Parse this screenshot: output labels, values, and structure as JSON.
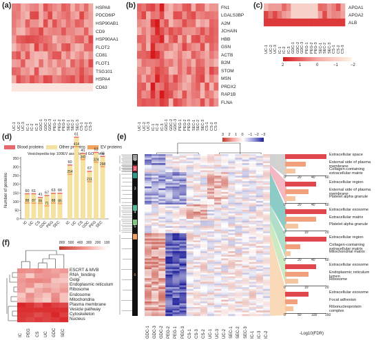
{
  "panels": {
    "a": "(a)",
    "b": "(b)",
    "c": "(c)",
    "d": "(d)",
    "e": "(e)",
    "f": "(f)"
  },
  "sample_labels": [
    "UC-1",
    "UC-2",
    "UC-3",
    "IC-1",
    "IC-2",
    "IC-3",
    "GDC-1",
    "GDC-2",
    "GDC-3",
    "PEG-1",
    "PEG-2",
    "PEG-3",
    "SEC-1",
    "SEC-2",
    "SEC-3",
    "CS-1",
    "CS-2",
    "CS-3"
  ],
  "panel_a": {
    "genes": [
      "HSPA8",
      "PDCD6IP",
      "HSP90AB1",
      "CD9",
      "HSP90AA1",
      "FLOT2",
      "CD81",
      "FLOT1",
      "TSG101",
      "HSPA4",
      "CD63"
    ]
  },
  "panel_b": {
    "genes": [
      "FN1",
      "LGALS3BP",
      "A2M",
      "JCHAIN",
      "HBB",
      "GSN",
      "ACTB",
      "B2M",
      "STOM",
      "MSN",
      "PRDX2",
      "RAP1B",
      "FLNA"
    ]
  },
  "panel_c": {
    "genes": [
      "APOA1",
      "APOA2",
      "ALB"
    ]
  },
  "colorscale": {
    "ticks": [
      "2",
      "1",
      "0",
      "−1",
      "−2"
    ],
    "high": "#d7191c",
    "mid": "#f6c6c0",
    "low": "#fdf4e6"
  },
  "panel_d": {
    "legend": [
      "Blood proteins",
      "Other proteins",
      "EV proteins"
    ],
    "colors": {
      "blood": "#e8676b",
      "other": "#f5e2a0",
      "ev": "#f4a35c"
    },
    "ylabel": "Number of proteins",
    "yticks": [
      "0",
      "50",
      "100",
      "150",
      "200",
      "250",
      "300",
      "350"
    ],
    "group1_title": "Vesiclepedia top 100",
    "group2_title": "EV associated GO terms",
    "categories": [
      "IC",
      "UC",
      "CS",
      "GDC",
      "PEG",
      "SEC"
    ],
    "g1_top": [
      "60",
      "61",
      "41",
      "67",
      "63",
      "66"
    ],
    "g1_bottom": [
      "88",
      "87",
      "86",
      "71",
      "88",
      "85"
    ],
    "g2_top": [
      "60",
      "61",
      "41",
      "67",
      "63",
      "66"
    ],
    "g2_bottom": [
      "254",
      "414",
      "340",
      "211",
      "324",
      "298"
    ]
  },
  "panel_e": {
    "scale_ticks": [
      "3",
      "2",
      "1",
      "0",
      "−1",
      "−2",
      "−3"
    ],
    "clusters": [
      "1",
      "2",
      "3",
      "4",
      "5",
      "6"
    ],
    "x_labels": [
      "GDC-1",
      "GDC-3",
      "GDC-2",
      "PEG-2",
      "PEG-1",
      "PEG-3",
      "CS-1",
      "CS-3",
      "CS-2",
      "UC-1",
      "UC-3",
      "UC-2",
      "SEC-1",
      "SEC-2",
      "SEC-3",
      "IC-1",
      "IC-3",
      "IC-2"
    ],
    "go": [
      [
        "Extracellular space",
        "External side of plasma membrane",
        "Collagen-containing extracellular matrix"
      ],
      [
        "Extracellular region",
        "External side of plasma membrane",
        "Platelet alpha granule"
      ],
      [
        "Extracellular exosome",
        "Extracellular matrix",
        "Platelet alpha granule"
      ],
      [
        "Extracellular region",
        "Collagen-containing extracellular matrix",
        "Mitochondrial matrix"
      ],
      [
        "Extracellular exosome",
        "Endoplasmic reticulum lumen",
        "Ribosome"
      ],
      [
        "Extracellular exosome",
        "Focal adhesion",
        "Ribonucleoprotein complex"
      ]
    ],
    "go_values": [
      [
        80,
        40,
        20
      ],
      [
        60,
        45,
        20
      ],
      [
        90,
        60,
        25
      ],
      [
        150,
        55,
        20
      ],
      [
        60,
        45,
        25
      ],
      [
        85,
        45,
        30
      ]
    ],
    "bar_ticks": [
      "0",
      "20",
      "40",
      "60"
    ],
    "bar_ticks_small": [
      "0",
      "10",
      "20"
    ],
    "bar_ticks_last": [
      "0",
      "50",
      "100",
      "150"
    ],
    "xlabel": "-Log10(FDR)"
  },
  "panel_f": {
    "scale_ticks": [
      "800",
      "500",
      "400",
      "300",
      "200",
      "100"
    ],
    "rows": [
      "ESCRT & MVB",
      "RNA_binding",
      "Golgi",
      "Endoplasmic reticulum",
      "Ribosome",
      "Endosome",
      "Mitochondria",
      "Plasma membrane",
      "Vesicle pathway",
      "Cytoskeleton",
      "Nucleus"
    ],
    "cols": [
      "IC",
      "PEG",
      "CS",
      "UC",
      "GDC",
      "SEC"
    ]
  }
}
